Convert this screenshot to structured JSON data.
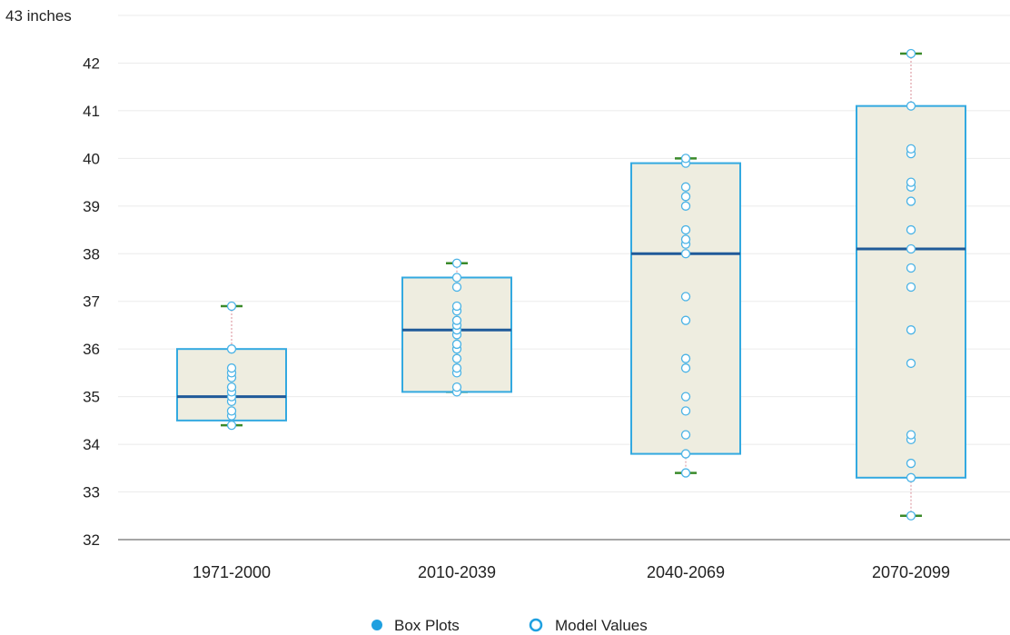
{
  "chart_data": {
    "type": "boxplot",
    "y_unit_label": "43 inches",
    "yticks": [
      32,
      33,
      34,
      35,
      36,
      37,
      38,
      39,
      40,
      41,
      42
    ],
    "ylim": [
      32,
      43
    ],
    "grid": true,
    "legend_position": "bottom",
    "categories": [
      "1971-2000",
      "2010-2039",
      "2040-2069",
      "2070-2099"
    ],
    "boxes": [
      {
        "min": 34.4,
        "q1": 34.5,
        "median": 35.0,
        "q3": 36.0,
        "max": 36.9
      },
      {
        "min": 35.1,
        "q1": 35.1,
        "median": 36.4,
        "q3": 37.5,
        "max": 37.8
      },
      {
        "min": 33.4,
        "q1": 33.8,
        "median": 38.0,
        "q3": 39.9,
        "max": 40.0
      },
      {
        "min": 32.5,
        "q1": 33.3,
        "median": 38.1,
        "q3": 41.1,
        "max": 42.2
      }
    ],
    "model_values": [
      [
        34.4,
        34.6,
        34.7,
        34.9,
        35.0,
        35.1,
        35.2,
        35.4,
        35.5,
        35.6,
        36.0,
        36.9
      ],
      [
        35.1,
        35.2,
        35.5,
        35.6,
        35.8,
        36.0,
        36.1,
        36.3,
        36.4,
        36.5,
        36.6,
        36.8,
        36.9,
        37.3,
        37.5,
        37.8
      ],
      [
        33.4,
        33.8,
        34.2,
        34.7,
        35.0,
        35.6,
        35.8,
        36.6,
        37.1,
        38.0,
        38.2,
        38.3,
        38.5,
        39.0,
        39.2,
        39.4,
        39.9,
        40.0
      ],
      [
        32.5,
        33.3,
        33.6,
        34.1,
        34.2,
        35.7,
        36.4,
        37.3,
        37.7,
        38.1,
        38.5,
        39.1,
        39.4,
        39.5,
        40.1,
        40.2,
        41.1,
        42.2
      ]
    ],
    "legend": [
      {
        "label": "Box Plots",
        "marker": "filled-circle"
      },
      {
        "label": "Model Values",
        "marker": "hollow-circle"
      }
    ],
    "colors": {
      "box_fill": "#eeede0",
      "box_stroke": "#33a9e0",
      "median": "#1f5a99",
      "whisker": "#e0a0a8",
      "whisker_cap": "#3a8a2a",
      "point_stroke": "#4ab3e6",
      "point_fill": "#ffffff",
      "grid": "#ebebeb",
      "axis": "#888888",
      "legend_dot": "#1fa0e0"
    }
  }
}
